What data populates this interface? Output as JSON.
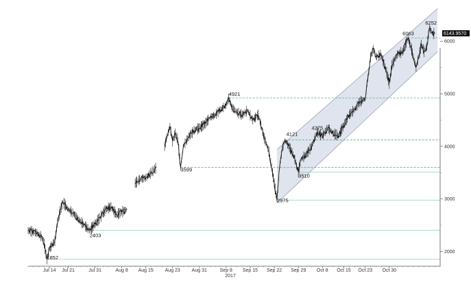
{
  "chart_data": {
    "type": "line",
    "title": "",
    "xlabel": "",
    "ylabel": "",
    "year_label": "2017",
    "x_tick_labels": [
      "Jul 14",
      "Jul 21",
      "Jul 31",
      "Aug 8",
      "Aug 15",
      "Aug 23",
      "Aug 31",
      "Sep 8",
      "Sep 15",
      "Sep 22",
      "Sep 29",
      "Oct 8",
      "Oct 15",
      "Oct 23",
      "Oct 30"
    ],
    "y_ticks": [
      2000,
      3000,
      4000,
      5000,
      6000
    ],
    "y_tick_labels": [
      "2000",
      "3000",
      "4000",
      "5000",
      "6000"
    ],
    "ylim": [
      1720,
      6680
    ],
    "grid": false,
    "last_value_label": "6143.9570",
    "annotations": [
      {
        "label": "1852",
        "day": 7,
        "value": 1852
      },
      {
        "label": "2403",
        "day": 23,
        "value": 2403
      },
      {
        "label": "3599",
        "day": 57,
        "value": 3599
      },
      {
        "label": "4921",
        "day": 75,
        "value": 4921
      },
      {
        "label": "2975",
        "day": 93,
        "value": 2975
      },
      {
        "label": "4121",
        "day": 96,
        "value": 4121
      },
      {
        "label": "3510",
        "day": 101,
        "value": 3510
      },
      {
        "label": "4275",
        "day": 108,
        "value": 4275
      },
      {
        "label": "6063",
        "day": 142,
        "value": 6063
      },
      {
        "label": "6252",
        "day": 150,
        "value": 6252
      }
    ],
    "horizontal_levels": [
      {
        "value": 1852,
        "style": "solid",
        "color": "#8fcfb0"
      },
      {
        "value": 2403,
        "style": "solid",
        "color": "#8fcfb0"
      },
      {
        "value": 2975,
        "style": "solid",
        "color": "#8fcfb0"
      },
      {
        "value": 3510,
        "style": "solid",
        "color": "#8fcfb0"
      },
      {
        "value": 3599,
        "style": "dashed",
        "color": "#4caf7a"
      },
      {
        "value": 4121,
        "style": "dashed",
        "color": "#4caf7a"
      },
      {
        "value": 4921,
        "style": "dashed",
        "color": "#4caf7a"
      },
      {
        "value": 6063,
        "style": "dashed",
        "color": "#4caf7a"
      }
    ],
    "channel": {
      "start_day": 93,
      "end_day": 153,
      "lower_start": 2920,
      "lower_end": 5800,
      "upper_start": 3940,
      "upper_end": 6620,
      "fill": "#dfe4ee",
      "stroke": "#9aa3b5"
    },
    "series": [
      {
        "color": "#111111",
        "points": [
          [
            0,
            2400
          ],
          [
            3,
            2360
          ],
          [
            5,
            2280
          ],
          [
            6,
            2150
          ],
          [
            7,
            1852
          ],
          [
            8,
            2050
          ],
          [
            10,
            2200
          ],
          [
            11,
            2550
          ],
          [
            12,
            2780
          ],
          [
            13,
            2940
          ],
          [
            15,
            2800
          ],
          [
            17,
            2720
          ],
          [
            19,
            2600
          ],
          [
            21,
            2500
          ],
          [
            23,
            2403
          ],
          [
            25,
            2520
          ],
          [
            27,
            2650
          ],
          [
            29,
            2800
          ],
          [
            31,
            2850
          ],
          [
            33,
            2700
          ],
          [
            35,
            2750
          ],
          [
            37,
            2800
          ],
          [
            40,
            3300
          ],
          [
            42,
            3380
          ],
          [
            44,
            3400
          ],
          [
            46,
            3500
          ],
          [
            48,
            3600
          ],
          [
            51,
            4000
          ],
          [
            52,
            4200
          ],
          [
            53,
            4380
          ],
          [
            54,
            4100
          ],
          [
            55,
            4250
          ],
          [
            56,
            4100
          ],
          [
            57,
            3599
          ],
          [
            58,
            4000
          ],
          [
            60,
            4180
          ],
          [
            62,
            4300
          ],
          [
            64,
            4350
          ],
          [
            66,
            4420
          ],
          [
            68,
            4550
          ],
          [
            70,
            4600
          ],
          [
            72,
            4700
          ],
          [
            74,
            4780
          ],
          [
            75,
            4921
          ],
          [
            76,
            4750
          ],
          [
            78,
            4650
          ],
          [
            80,
            4600
          ],
          [
            82,
            4680
          ],
          [
            84,
            4500
          ],
          [
            86,
            4600
          ],
          [
            88,
            4200
          ],
          [
            90,
            3900
          ],
          [
            91,
            3600
          ],
          [
            92,
            3300
          ],
          [
            93,
            2975
          ],
          [
            94,
            3600
          ],
          [
            95,
            3950
          ],
          [
            96,
            4121
          ],
          [
            98,
            3950
          ],
          [
            99,
            3850
          ],
          [
            100,
            3700
          ],
          [
            101,
            3510
          ],
          [
            102,
            3750
          ],
          [
            104,
            3850
          ],
          [
            106,
            4000
          ],
          [
            108,
            4275
          ],
          [
            110,
            4200
          ],
          [
            112,
            4350
          ],
          [
            114,
            4250
          ],
          [
            116,
            4200
          ],
          [
            118,
            4400
          ],
          [
            120,
            4600
          ],
          [
            122,
            4700
          ],
          [
            124,
            4850
          ],
          [
            126,
            4900
          ],
          [
            127,
            5300
          ],
          [
            128,
            5700
          ],
          [
            129,
            5850
          ],
          [
            130,
            5700
          ],
          [
            132,
            5750
          ],
          [
            134,
            5400
          ],
          [
            135,
            5200
          ],
          [
            136,
            5550
          ],
          [
            138,
            5750
          ],
          [
            140,
            5800
          ],
          [
            142,
            6063
          ],
          [
            143,
            5900
          ],
          [
            145,
            5500
          ],
          [
            146,
            5700
          ],
          [
            147,
            5950
          ],
          [
            148,
            5800
          ],
          [
            149,
            5900
          ],
          [
            150,
            6252
          ],
          [
            151,
            6150
          ],
          [
            152,
            6143.957
          ]
        ]
      }
    ]
  }
}
